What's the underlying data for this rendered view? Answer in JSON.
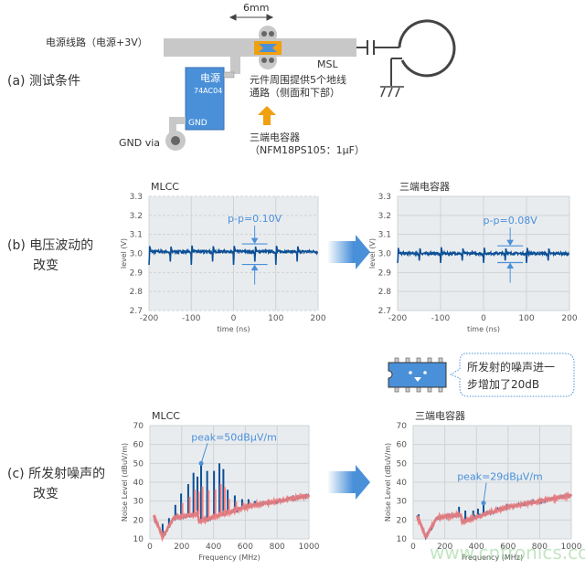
{
  "sections": {
    "a_label": "(a) 测试条件",
    "b_label_1": "(b) 电压波动的",
    "b_label_2": "改变",
    "c_label_1": "(c) 所发射噪声的",
    "c_label_2": "改变"
  },
  "diagram": {
    "dimension": "6mm",
    "power_line": "电源线路（电源+3V）",
    "ic_title": "电源",
    "ic_part": "74AC04",
    "ic_gnd": "GND",
    "gnd_via": "GND via",
    "msl": "MSL",
    "note_1": "元件周围提供5个地线",
    "note_2": "通路（侧面和下部）",
    "cap_name": "三端电容器",
    "cap_part": "（NFM18PS105：1μF）"
  },
  "bubble": {
    "line1": "所发射的噪声进一",
    "line2": "步增加了20dB"
  },
  "colors": {
    "trace": "#0b4f96",
    "annotation": "#4a90d9",
    "baseline_noise": "#f08080",
    "plot_bg": "#e9ecef",
    "ic_blue": "#4a90d9",
    "capacitor": "#f0a010"
  },
  "watermark": "www.cntronics.com",
  "chart_data": [
    {
      "type": "line",
      "title": "MLCC",
      "xlabel": "time (ns)",
      "ylabel": "level (V)",
      "xlim": [
        -200,
        200
      ],
      "ylim": [
        2.7,
        3.3
      ],
      "xticks": [
        "-200",
        "-100",
        "0",
        "100",
        "200"
      ],
      "yticks": [
        "2.7",
        "2.8",
        "2.9",
        "3.0",
        "3.1",
        "3.2",
        "3.3"
      ],
      "grid": true,
      "series": {
        "baseline": 3.01,
        "max": 3.04,
        "min": 2.94,
        "pulse_period_ns": 50
      },
      "annotation": "p-p=0.10V"
    },
    {
      "type": "line",
      "title": "三端电容器",
      "xlabel": "time (ns)",
      "ylabel": "level (V)",
      "xlim": [
        -200,
        200
      ],
      "ylim": [
        2.7,
        3.3
      ],
      "xticks": [
        "-200",
        "-100",
        "0",
        "100",
        "200"
      ],
      "yticks": [
        "2.7",
        "2.8",
        "2.9",
        "3.0",
        "3.1",
        "3.2",
        "3.3"
      ],
      "grid": true,
      "series": {
        "baseline": 3.0,
        "max": 3.03,
        "min": 2.95,
        "pulse_period_ns": 50
      },
      "annotation": "p-p=0.08V"
    },
    {
      "type": "line",
      "title": "MLCC",
      "xlabel": "Frequency (MHz)",
      "ylabel": "Noise Level (dBuV/m)",
      "xlim": [
        0,
        1000
      ],
      "ylim": [
        10,
        70
      ],
      "xticks": [
        "0",
        "200",
        "400",
        "600",
        "800",
        "1000"
      ],
      "yticks": [
        "10",
        "20",
        "30",
        "40",
        "50",
        "60",
        "70"
      ],
      "grid": true,
      "baseline": [
        [
          25,
          22
        ],
        [
          80,
          11
        ],
        [
          150,
          21
        ],
        [
          300,
          23
        ],
        [
          310,
          19
        ],
        [
          600,
          27
        ],
        [
          1000,
          33
        ]
      ],
      "peaks": [
        [
          80,
          18
        ],
        [
          120,
          21
        ],
        [
          160,
          28
        ],
        [
          196,
          34
        ],
        [
          241,
          39
        ],
        [
          274,
          45
        ],
        [
          299,
          43
        ],
        [
          322,
          50
        ],
        [
          360,
          46
        ],
        [
          403,
          46
        ],
        [
          437,
          50
        ],
        [
          462,
          47
        ],
        [
          489,
          36
        ],
        [
          534,
          33
        ],
        [
          580,
          31
        ],
        [
          620,
          31
        ],
        [
          660,
          30
        ],
        [
          750,
          30
        ],
        [
          900,
          33
        ]
      ],
      "annotation": "peak=50dBμV/m"
    },
    {
      "type": "line",
      "title": "三端电容器",
      "xlabel": "Frequency (MHz)",
      "ylabel": "Noise Level (dBuV/m)",
      "xlim": [
        0,
        1000
      ],
      "ylim": [
        10,
        70
      ],
      "xticks": [
        "0",
        "200",
        "400",
        "600",
        "800",
        "1000"
      ],
      "yticks": [
        "10",
        "20",
        "30",
        "40",
        "50",
        "60",
        "70"
      ],
      "grid": true,
      "baseline": [
        [
          25,
          22
        ],
        [
          80,
          11
        ],
        [
          150,
          21
        ],
        [
          300,
          23
        ],
        [
          310,
          19
        ],
        [
          600,
          27
        ],
        [
          1000,
          33
        ]
      ],
      "peaks": [
        [
          35,
          23
        ],
        [
          290,
          27
        ],
        [
          330,
          25
        ],
        [
          380,
          25
        ],
        [
          410,
          26
        ],
        [
          445,
          29
        ]
      ],
      "annotation": "peak=29dBμV/m"
    }
  ]
}
